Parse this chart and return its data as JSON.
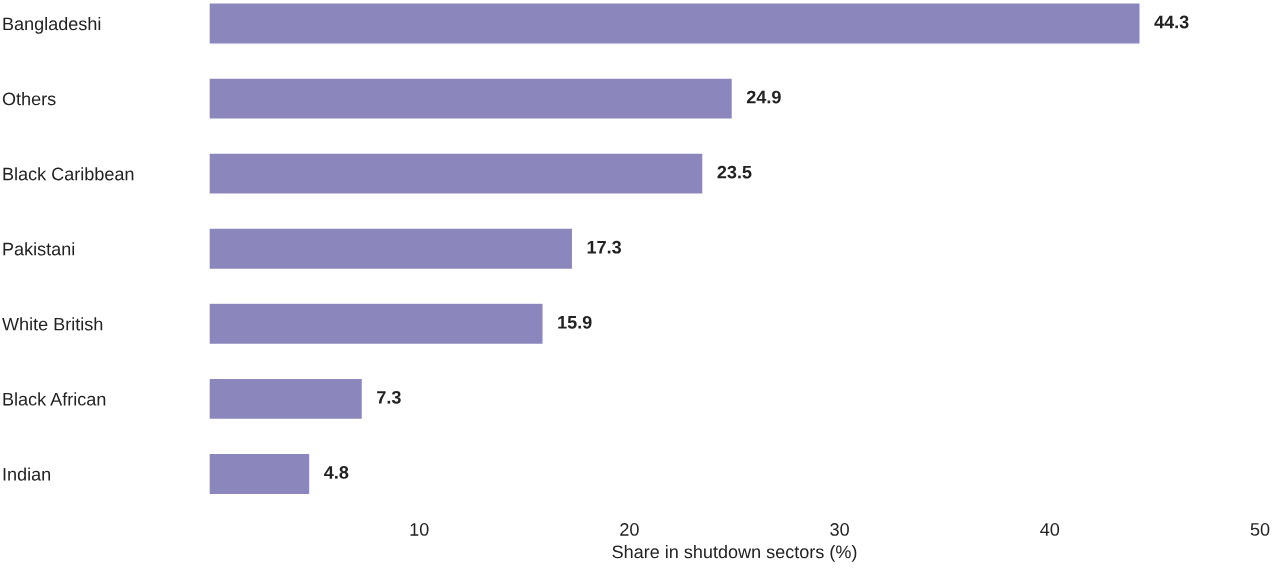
{
  "chart_data": {
    "type": "bar",
    "orientation": "horizontal",
    "xlabel": "Share in shutdown sectors (%)",
    "categories": [
      "Bangladeshi",
      "Others",
      "Black Caribbean",
      "Pakistani",
      "White British",
      "Black African",
      "Indian"
    ],
    "values": [
      44.3,
      24.9,
      23.5,
      17.3,
      15.9,
      7.3,
      4.8
    ],
    "color": "#8b86bb",
    "xlim": [
      0,
      50
    ],
    "xticks": [
      10,
      20,
      30,
      40,
      50
    ],
    "data_labels": true,
    "grid": false,
    "legend": false
  }
}
